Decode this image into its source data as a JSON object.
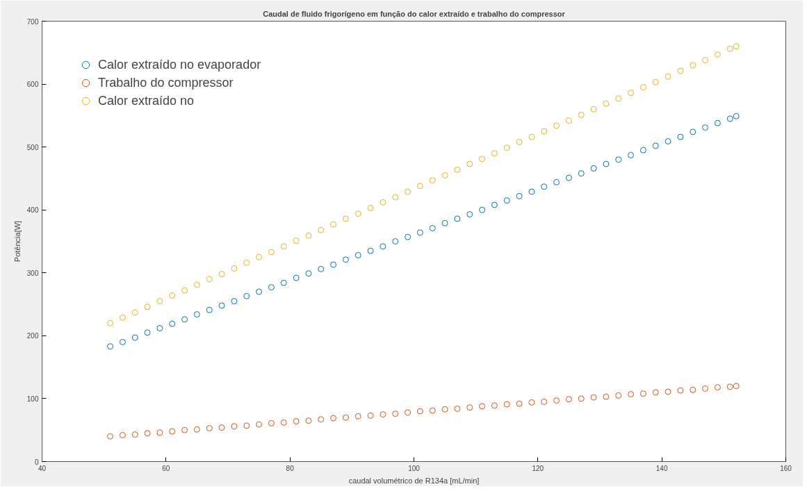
{
  "chart_data": {
    "type": "scatter",
    "title": "Caudal de fluido frigorígeno em função do calor extraído e trabalho do compressor",
    "xlabel": "caudal volumétrico de R134a [mL/min]",
    "ylabel": "Potência[W]",
    "x": [
      51,
      53,
      55,
      57,
      59,
      61,
      63,
      65,
      67,
      69,
      71,
      73,
      75,
      77,
      79,
      81,
      83,
      85,
      87,
      89,
      91,
      93,
      95,
      97,
      99,
      101,
      103,
      105,
      107,
      109,
      111,
      113,
      115,
      117,
      119,
      121,
      123,
      125,
      127,
      129,
      131,
      133,
      135,
      137,
      139,
      141,
      143,
      145,
      147,
      149,
      151,
      152
    ],
    "series": [
      {
        "name": "Calor extraído no evaporador",
        "color": "#0072bd",
        "values": [
          183,
          190,
          197,
          205,
          212,
          219,
          226,
          234,
          241,
          248,
          255,
          263,
          270,
          277,
          284,
          292,
          299,
          306,
          313,
          321,
          328,
          335,
          342,
          350,
          357,
          364,
          371,
          379,
          386,
          393,
          400,
          408,
          415,
          422,
          429,
          437,
          444,
          451,
          458,
          466,
          473,
          480,
          487,
          495,
          502,
          509,
          516,
          524,
          531,
          538,
          545,
          549
        ]
      },
      {
        "name": "Trabalho do compressor",
        "color": "#d95319",
        "values": [
          40,
          42,
          43,
          45,
          46,
          48,
          50,
          51,
          53,
          54,
          56,
          57,
          59,
          61,
          62,
          64,
          65,
          67,
          69,
          70,
          72,
          73,
          75,
          76,
          78,
          80,
          81,
          83,
          84,
          86,
          88,
          89,
          91,
          92,
          94,
          95,
          97,
          99,
          100,
          102,
          103,
          105,
          107,
          108,
          110,
          111,
          113,
          114,
          116,
          118,
          119,
          120
        ]
      },
      {
        "name": "Calor extraído no",
        "color": "#edb120",
        "values": [
          220,
          229,
          237,
          246,
          255,
          264,
          272,
          281,
          290,
          298,
          307,
          316,
          325,
          333,
          342,
          351,
          359,
          368,
          377,
          386,
          394,
          403,
          412,
          420,
          429,
          438,
          447,
          455,
          464,
          473,
          481,
          490,
          499,
          508,
          516,
          525,
          534,
          542,
          551,
          560,
          569,
          577,
          586,
          595,
          603,
          612,
          621,
          630,
          638,
          647,
          656,
          660
        ]
      }
    ],
    "xlim": [
      40,
      160
    ],
    "xticks": [
      40,
      60,
      80,
      100,
      120,
      140,
      160
    ],
    "ylim": [
      0,
      700
    ],
    "yticks": [
      0,
      100,
      200,
      300,
      400,
      500,
      600,
      700
    ],
    "grid": false,
    "legend": "top left",
    "marker": "circle"
  }
}
